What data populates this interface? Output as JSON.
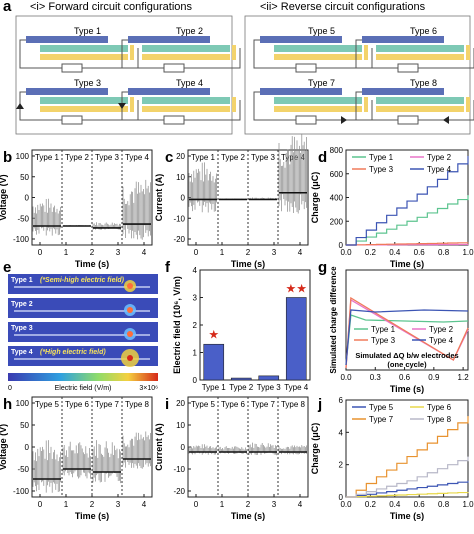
{
  "panel_a": {
    "letter": "a",
    "forward_title": "<i> Forward circuit configurations",
    "reverse_title": "<ii> Reverse circuit configurations",
    "forward_types": [
      "Type 1",
      "Type 2",
      "Type 3",
      "Type 4"
    ],
    "reverse_types": [
      "Type 5",
      "Type 6",
      "Type 7",
      "Type 8"
    ],
    "colors": {
      "electrode_top": "#5b6fb6",
      "electrode_mid": "#7ec9b5",
      "electrode_bottom": "#f3d36b",
      "frame": "#555555"
    }
  },
  "letters": {
    "b": "b",
    "c": "c",
    "d": "d",
    "e": "e",
    "f": "f",
    "g": "g",
    "h": "h",
    "i": "i",
    "j": "j"
  },
  "common": {
    "time_axis": "Time (s)"
  },
  "panel_b": {
    "ylabel": "Voltage (V)",
    "yticks": [
      "100",
      "50",
      "0",
      "-50",
      "-100"
    ],
    "xticks": [
      "0",
      "1",
      "2",
      "3",
      "4"
    ],
    "segments": [
      "Type 1",
      "Type 2",
      "Type 3",
      "Type 4"
    ]
  },
  "panel_c": {
    "ylabel": "Current (A)",
    "yticks": [
      "20",
      "10",
      "0",
      "-10",
      "-20"
    ],
    "xticks": [
      "0",
      "1",
      "2",
      "3",
      "4"
    ],
    "segments": [
      "Type 1",
      "Type 2",
      "Type 3",
      "Type 4"
    ]
  },
  "panel_d": {
    "ylabel": "Charge (μC)",
    "yticks": [
      "0",
      "200",
      "400",
      "600",
      "800"
    ],
    "xticks": [
      "0.0",
      "0.2",
      "0.4",
      "0.6",
      "0.8",
      "1.0"
    ],
    "legend": [
      "Type 1",
      "Type 2",
      "Type 3",
      "Type 4"
    ],
    "colors": {
      "Type 1": "#5cc48f",
      "Type 2": "#e874c8",
      "Type 3": "#f07a5a",
      "Type 4": "#3c55b4"
    }
  },
  "panel_e": {
    "items": [
      "Type 1",
      "(*Semi-high electric field)",
      "Type 2",
      "Type 3",
      "Type 4",
      "(*High electric field)"
    ],
    "colorbar_min": "0",
    "colorbar_label": "Electric field (V/m)",
    "colorbar_max": "3×10⁶"
  },
  "panel_f": {
    "ylabel": "Electric field (10⁶, V/m)",
    "yticks": [
      "0",
      "1",
      "2",
      "3",
      "4"
    ],
    "stars": [
      "★",
      "★★"
    ]
  },
  "panel_g": {
    "ylabel": "Simulated charge difference",
    "xticks": [
      "0.0",
      "0.3",
      "0.6",
      "0.9",
      "1.2"
    ],
    "legend": [
      "Type 1",
      "Type 2",
      "Type 3",
      "Type 4"
    ],
    "annotation_1": "Simulated ΔQ b/w electrodes",
    "annotation_2": "(one cycle)"
  },
  "panel_h": {
    "ylabel": "Voltage (V)",
    "yticks": [
      "100",
      "50",
      "0",
      "-50",
      "-100"
    ],
    "xticks": [
      "0",
      "1",
      "2",
      "3",
      "4"
    ],
    "segments": [
      "Type 5",
      "Type 6",
      "Type 7",
      "Type 8"
    ]
  },
  "panel_i": {
    "ylabel": "Current (A)",
    "yticks": [
      "20",
      "10",
      "0",
      "-10",
      "-20"
    ],
    "xticks": [
      "0",
      "1",
      "2",
      "3",
      "4"
    ],
    "segments": [
      "Type 5",
      "Type 6",
      "Type 7",
      "Type 8"
    ]
  },
  "panel_j": {
    "ylabel": "Charge (μC)",
    "yticks": [
      "0",
      "2",
      "4",
      "6"
    ],
    "xticks": [
      "0.0",
      "0.2",
      "0.4",
      "0.6",
      "0.8",
      "1.0"
    ],
    "legend": [
      "Type 5",
      "Type 6",
      "Type 7",
      "Type 8"
    ],
    "colors": {
      "Type 5": "#3c55b4",
      "Type 6": "#e8d84a",
      "Type 7": "#e8922f",
      "Type 8": "#b8b8c8"
    }
  },
  "chart_data": [
    {
      "panel": "d",
      "type": "line",
      "xlabel": "Time (s)",
      "ylabel": "Charge (μC)",
      "xlim": [
        0,
        1.0
      ],
      "ylim": [
        0,
        800
      ],
      "series": [
        {
          "name": "Type 1",
          "x": [
            0,
            0.2,
            0.4,
            0.6,
            0.8,
            1.0
          ],
          "values": [
            0,
            80,
            160,
            240,
            330,
            420
          ]
        },
        {
          "name": "Type 2",
          "x": [
            0,
            1.0
          ],
          "values": [
            0,
            5
          ]
        },
        {
          "name": "Type 3",
          "x": [
            0,
            1.0
          ],
          "values": [
            0,
            20
          ]
        },
        {
          "name": "Type 4",
          "x": [
            0,
            0.2,
            0.4,
            0.6,
            0.8,
            1.0
          ],
          "values": [
            0,
            150,
            300,
            440,
            590,
            750
          ]
        }
      ]
    },
    {
      "panel": "f",
      "type": "bar",
      "categories": [
        "Type 1",
        "Type 2",
        "Type 3",
        "Type 4"
      ],
      "values": [
        1.3,
        0.07,
        0.15,
        3.0
      ],
      "ylabel": "Electric field (10⁶, V/m)",
      "ylim": [
        0,
        4
      ]
    },
    {
      "panel": "g",
      "type": "line",
      "xlabel": "Time (s)",
      "ylabel": "Simulated charge difference",
      "xlim": [
        0,
        1.25
      ],
      "series": [
        {
          "name": "Type 1",
          "x": [
            0,
            0.05,
            0.2,
            0.6,
            1.0,
            1.25
          ],
          "values": [
            0.05,
            0.55,
            0.5,
            0.49,
            0.48,
            0.49
          ]
        },
        {
          "name": "Type 2",
          "x": [
            0,
            0.05,
            1.1,
            1.25
          ],
          "values": [
            0.02,
            0.7,
            0.1,
            0.4
          ]
        },
        {
          "name": "Type 3",
          "x": [
            0,
            0.05,
            1.1,
            1.25
          ],
          "values": [
            0.02,
            0.72,
            0.1,
            0.42
          ]
        },
        {
          "name": "Type 4",
          "x": [
            0,
            0.05,
            0.3,
            0.8,
            1.25
          ],
          "values": [
            0.05,
            0.6,
            0.58,
            0.6,
            0.59
          ]
        }
      ]
    },
    {
      "panel": "j",
      "type": "line",
      "xlabel": "Time (s)",
      "ylabel": "Charge (μC)",
      "xlim": [
        0,
        1.0
      ],
      "ylim": [
        0,
        6
      ],
      "series": [
        {
          "name": "Type 5",
          "x": [
            0,
            1.0
          ],
          "values": [
            0,
            1.0
          ]
        },
        {
          "name": "Type 6",
          "x": [
            0,
            1.0
          ],
          "values": [
            0,
            0.3
          ]
        },
        {
          "name": "Type 7",
          "x": [
            0,
            0.2,
            0.4,
            0.6,
            0.8,
            1.0
          ],
          "values": [
            0,
            1.0,
            2.0,
            3.0,
            4.0,
            5.0
          ]
        },
        {
          "name": "Type 8",
          "x": [
            0,
            0.5,
            1.0
          ],
          "values": [
            0,
            1.0,
            2.5
          ]
        }
      ]
    }
  ]
}
